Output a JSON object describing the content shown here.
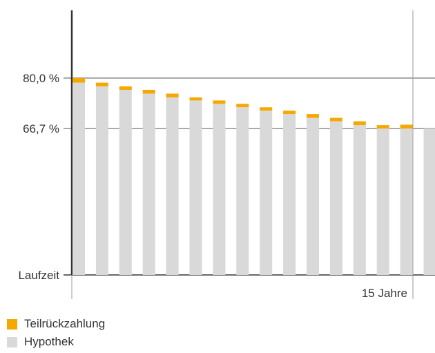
{
  "chart_data": {
    "type": "bar",
    "stacked": true,
    "y_reference_labels": [
      "80,0 %",
      "66,7 %"
    ],
    "y_reference_values": [
      80.0,
      66.7
    ],
    "ylim": [
      0,
      100
    ],
    "x_start_label": "Laufzeit",
    "x_end_label": "15 Jahre",
    "grid": false,
    "legend_placement": "bottom-left",
    "series": [
      {
        "name": "Hypothek",
        "color": "#d9d9d9",
        "values": [
          78.8,
          77.8,
          76.9,
          75.9,
          74.9,
          74.1,
          73.2,
          72.3,
          71.4,
          70.5,
          69.5,
          68.6,
          67.6,
          66.7,
          66.7,
          66.7
        ]
      },
      {
        "name": "Teilrückzahlung",
        "color": "#f5a800",
        "values": [
          1.2,
          1.0,
          0.9,
          1.0,
          1.0,
          0.8,
          0.9,
          0.9,
          0.9,
          0.9,
          1.0,
          0.9,
          1.0,
          0.9,
          1.0,
          0.0
        ]
      }
    ]
  },
  "legend": {
    "items": [
      {
        "label": "Teilrückzahlung",
        "color": "#f5a800"
      },
      {
        "label": "Hypothek",
        "color": "#d9d9d9"
      }
    ]
  }
}
